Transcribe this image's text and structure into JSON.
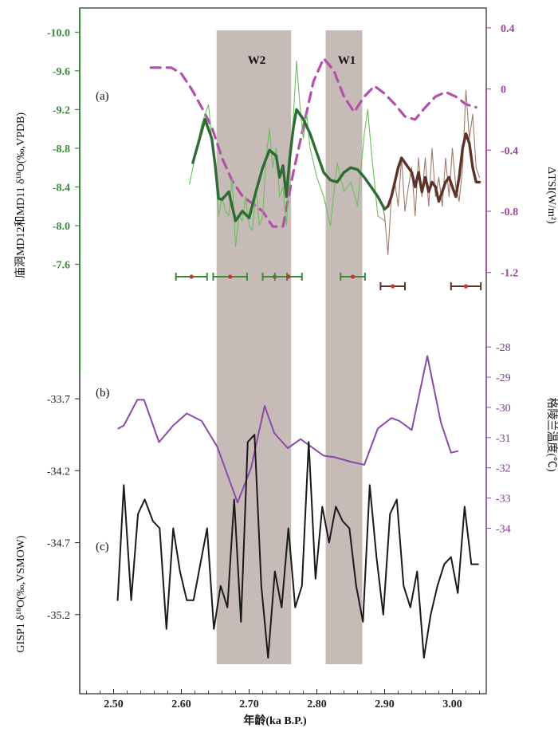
{
  "chart_data": {
    "type": "line",
    "x_axis": {
      "label": "年龄(ka B.P.)",
      "range": [
        2.45,
        3.05
      ],
      "ticks": [
        "2.50",
        "2.60",
        "2.70",
        "2.80",
        "2.90",
        "3.00"
      ],
      "tick_values": [
        2.5,
        2.6,
        2.7,
        2.8,
        2.9,
        3.0
      ]
    },
    "warm_periods": [
      {
        "label": "W2",
        "start": 2.652,
        "end": 2.762
      },
      {
        "label": "W1",
        "start": 2.813,
        "end": 2.867
      }
    ],
    "panel_a": {
      "label": "(a)",
      "left_axis": {
        "label": "庙洞MD12和MD11 δ¹⁸O(‰,VPDB)",
        "range": [
          -7.2,
          -10.25
        ],
        "ticks": [
          "-10.0",
          "-9.6",
          "-9.2",
          "-8.8",
          "-8.4",
          "-8.0",
          "-7.6"
        ],
        "tick_values": [
          -10.0,
          -9.6,
          -9.2,
          -8.8,
          -8.4,
          -8.0,
          -7.6
        ]
      },
      "right_axis": {
        "label": "ΔTSI(W/m²)",
        "range": [
          -1.4,
          0.53
        ],
        "ticks": [
          "0.4",
          "0",
          "-0.4",
          "-0.8",
          "-1.2"
        ],
        "tick_values": [
          0.4,
          0.0,
          -0.4,
          -0.8,
          -1.2
        ]
      },
      "series": [
        {
          "name": "MD12 raw",
          "color": "#6abf5e",
          "x": [
            2.612,
            2.62,
            2.63,
            2.64,
            2.645,
            2.65,
            2.655,
            2.66,
            2.665,
            2.67,
            2.675,
            2.68,
            2.685,
            2.69,
            2.695,
            2.7,
            2.705,
            2.71,
            2.715,
            2.72,
            2.725,
            2.73,
            2.735,
            2.74,
            2.745,
            2.75,
            2.755,
            2.76,
            2.765,
            2.77,
            2.775,
            2.78,
            2.785,
            2.79,
            2.8,
            2.81,
            2.82,
            2.83,
            2.84,
            2.85,
            2.86,
            2.87,
            2.875,
            2.88,
            2.89,
            2.9
          ],
          "y": [
            -8.43,
            -8.7,
            -9.05,
            -9.25,
            -8.9,
            -8.6,
            -8.1,
            -8.3,
            -8.15,
            -8.1,
            -8.5,
            -7.78,
            -8.1,
            -8.05,
            -8.3,
            -8.0,
            -7.95,
            -8.4,
            -8.0,
            -8.1,
            -8.7,
            -9.0,
            -8.6,
            -8.8,
            -8.3,
            -8.4,
            -8.0,
            -8.6,
            -9.1,
            -9.7,
            -9.25,
            -8.9,
            -9.15,
            -8.8,
            -8.5,
            -8.3,
            -8.0,
            -8.65,
            -8.35,
            -8.45,
            -8.2,
            -8.95,
            -9.2,
            -8.8,
            -8.1,
            -8.05
          ]
        },
        {
          "name": "MD12 smoothed",
          "color": "#2f6b34",
          "x": [
            2.617,
            2.625,
            2.635,
            2.645,
            2.65,
            2.655,
            2.66,
            2.67,
            2.68,
            2.69,
            2.7,
            2.71,
            2.72,
            2.73,
            2.74,
            2.745,
            2.75,
            2.755,
            2.76,
            2.765,
            2.77,
            2.775,
            2.78,
            2.79,
            2.8,
            2.81,
            2.82,
            2.83,
            2.84,
            2.85,
            2.86,
            2.87,
            2.88,
            2.89,
            2.9,
            2.905
          ],
          "y": [
            -8.65,
            -8.85,
            -9.1,
            -8.9,
            -8.62,
            -8.28,
            -8.27,
            -8.35,
            -8.05,
            -8.15,
            -8.08,
            -8.35,
            -8.6,
            -8.78,
            -8.72,
            -8.5,
            -8.62,
            -8.3,
            -8.7,
            -9.0,
            -9.2,
            -9.15,
            -9.1,
            -8.95,
            -8.75,
            -8.55,
            -8.47,
            -8.45,
            -8.55,
            -8.6,
            -8.58,
            -8.5,
            -8.4,
            -8.3,
            -8.17,
            -8.2
          ]
        },
        {
          "name": "MD11 raw",
          "color": "#a0796a",
          "x": [
            2.895,
            2.9,
            2.905,
            2.91,
            2.915,
            2.92,
            2.925,
            2.93,
            2.935,
            2.94,
            2.945,
            2.95,
            2.955,
            2.96,
            2.965,
            2.97,
            2.975,
            2.98,
            2.985,
            2.99,
            2.995,
            3.0,
            3.005,
            3.01,
            3.015,
            3.02,
            3.025,
            3.03,
            3.035,
            3.04
          ],
          "y": [
            -8.25,
            -8.1,
            -7.7,
            -8.3,
            -8.45,
            -8.2,
            -8.7,
            -8.15,
            -8.4,
            -8.6,
            -8.1,
            -8.7,
            -8.3,
            -8.7,
            -8.2,
            -8.8,
            -8.3,
            -8.5,
            -8.2,
            -8.7,
            -8.3,
            -8.8,
            -8.4,
            -8.25,
            -8.6,
            -9.4,
            -8.9,
            -9.15,
            -8.6,
            -8.5
          ]
        },
        {
          "name": "MD11 smoothed",
          "color": "#5a3428",
          "x": [
            2.905,
            2.91,
            2.915,
            2.92,
            2.925,
            2.93,
            2.94,
            2.945,
            2.95,
            2.955,
            2.96,
            2.965,
            2.97,
            2.975,
            2.98,
            2.985,
            2.99,
            2.995,
            3.0,
            3.005,
            3.01,
            3.015,
            3.02,
            3.025,
            3.03,
            3.035,
            3.04
          ],
          "y": [
            -8.2,
            -8.3,
            -8.45,
            -8.6,
            -8.7,
            -8.65,
            -8.55,
            -8.4,
            -8.55,
            -8.35,
            -8.5,
            -8.35,
            -8.45,
            -8.4,
            -8.25,
            -8.35,
            -8.45,
            -8.5,
            -8.4,
            -8.3,
            -8.5,
            -8.8,
            -8.95,
            -8.85,
            -8.6,
            -8.45,
            -8.45
          ]
        },
        {
          "name": "ΔTSI",
          "color": "#b450a8",
          "axis": "right",
          "x": [
            2.555,
            2.57,
            2.585,
            2.6,
            2.615,
            2.63,
            2.645,
            2.66,
            2.675,
            2.69,
            2.705,
            2.72,
            2.735,
            2.75,
            2.765,
            2.78,
            2.795,
            2.81,
            2.825,
            2.84,
            2.855,
            2.87,
            2.885,
            2.9,
            2.915,
            2.93,
            2.945,
            2.96,
            2.975,
            2.99,
            3.005,
            3.02,
            3.035
          ],
          "y": [
            0.14,
            0.14,
            0.14,
            0.1,
            0.0,
            -0.12,
            -0.25,
            -0.45,
            -0.6,
            -0.7,
            -0.75,
            -0.8,
            -0.9,
            -0.9,
            -0.55,
            -0.25,
            0.05,
            0.2,
            0.12,
            -0.05,
            -0.15,
            -0.05,
            0.02,
            -0.03,
            -0.1,
            -0.18,
            -0.2,
            -0.12,
            -0.05,
            -0.02,
            -0.05,
            -0.1,
            -0.12
          ]
        }
      ],
      "dating_error_bars": [
        {
          "color": "#3a8a3a",
          "center": 2.615,
          "err": 0.023
        },
        {
          "color": "#3a8a3a",
          "center": 2.672,
          "err": 0.025
        },
        {
          "color": "#3a8a3a",
          "center": 2.738,
          "err": 0.018
        },
        {
          "color": "#3a8a3a",
          "center": 2.758,
          "err": 0.02
        },
        {
          "color": "#3a8a3a",
          "center": 2.853,
          "err": 0.018
        },
        {
          "color": "#5a3428",
          "center": 2.912,
          "err": 0.018
        },
        {
          "color": "#5a3428",
          "center": 3.02,
          "err": 0.022
        }
      ]
    },
    "panel_b": {
      "label": "(b)",
      "right_axis": {
        "label": "格陵兰温度(℃)",
        "range": [
          -34.2,
          -27.6
        ],
        "ticks": [
          "-28",
          "-29",
          "-30",
          "-31",
          "-32",
          "-33",
          "-34"
        ],
        "tick_values": [
          -28,
          -29,
          -30,
          -31,
          -32,
          -33,
          -34
        ]
      },
      "series": [
        {
          "name": "Greenland temperature",
          "color": "#8a4aa8",
          "x": [
            2.507,
            2.515,
            2.535,
            2.545,
            2.567,
            2.588,
            2.608,
            2.63,
            2.653,
            2.683,
            2.703,
            2.723,
            2.737,
            2.757,
            2.776,
            2.81,
            2.826,
            2.85,
            2.87,
            2.89,
            2.91,
            2.922,
            2.94,
            2.963,
            2.983,
            2.998,
            3.008
          ],
          "y": [
            -30.7,
            -30.6,
            -29.75,
            -29.75,
            -31.15,
            -30.6,
            -30.2,
            -30.45,
            -31.3,
            -33.15,
            -32.0,
            -29.95,
            -30.85,
            -31.35,
            -31.05,
            -31.6,
            -31.65,
            -31.8,
            -31.9,
            -30.7,
            -30.35,
            -30.45,
            -30.75,
            -28.3,
            -30.5,
            -31.5,
            -31.45
          ]
        }
      ]
    },
    "panel_c": {
      "label": "(c)",
      "left_axis": {
        "label": "GISP1 δ¹⁸O(‰,VSMOW)",
        "range": [
          -35.75,
          -33.45
        ],
        "ticks": [
          "-33.7",
          "-34.2",
          "-34.7",
          "-35.2"
        ],
        "tick_values": [
          -33.7,
          -34.2,
          -34.7,
          -35.2
        ]
      },
      "series": [
        {
          "name": "GISP1 δ18O",
          "color": "#1a1a1a",
          "x": [
            2.506,
            2.515,
            2.526,
            2.536,
            2.546,
            2.558,
            2.568,
            2.578,
            2.588,
            2.598,
            2.608,
            2.618,
            2.628,
            2.638,
            2.648,
            2.658,
            2.668,
            2.678,
            2.688,
            2.698,
            2.708,
            2.718,
            2.728,
            2.738,
            2.748,
            2.758,
            2.768,
            2.778,
            2.788,
            2.798,
            2.808,
            2.818,
            2.828,
            2.838,
            2.848,
            2.858,
            2.868,
            2.878,
            2.888,
            2.898,
            2.908,
            2.918,
            2.928,
            2.938,
            2.948,
            2.958,
            2.968,
            2.978,
            2.988,
            2.998,
            3.008,
            3.018,
            3.028,
            3.038
          ],
          "y": [
            -35.1,
            -34.3,
            -35.1,
            -34.5,
            -34.4,
            -34.55,
            -34.6,
            -35.3,
            -34.6,
            -34.9,
            -35.1,
            -35.1,
            -34.85,
            -34.6,
            -35.3,
            -35.0,
            -35.15,
            -34.4,
            -35.25,
            -34.0,
            -33.95,
            -35.0,
            -35.5,
            -34.9,
            -35.15,
            -34.6,
            -35.15,
            -35.0,
            -34.0,
            -34.95,
            -34.45,
            -34.7,
            -34.45,
            -34.55,
            -34.6,
            -35.0,
            -35.25,
            -34.3,
            -34.8,
            -35.2,
            -34.5,
            -34.4,
            -35.0,
            -35.15,
            -34.9,
            -35.5,
            -35.2,
            -35.0,
            -34.85,
            -34.8,
            -35.05,
            -34.45,
            -34.85,
            -34.85
          ]
        }
      ]
    }
  }
}
